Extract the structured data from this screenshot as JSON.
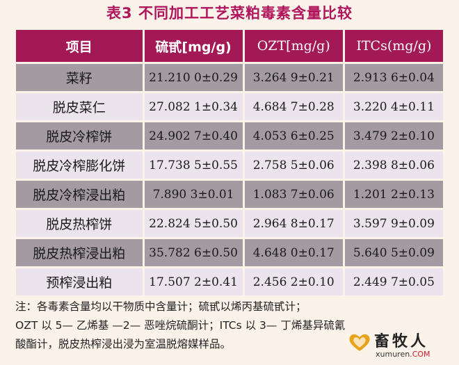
{
  "title": "表3  不同加工工艺菜粕毒素含量比较",
  "table": {
    "headers": [
      "项目",
      "硫甙[mg/g)",
      "OZT[mg/g)",
      "ITCs(mg/g)"
    ],
    "rows": [
      [
        "菜籽",
        "21.210 0±0.29",
        "3.264 9±0.21",
        "2.913 6±0.04"
      ],
      [
        "脱皮菜仁",
        "27.082 1±0.34",
        "4.684 7±0.28",
        "3.220 4±0.11"
      ],
      [
        "脱皮冷榨饼",
        "24.902 7±0.40",
        "4.053 6±0.25",
        "3.479 2±0.10"
      ],
      [
        "脱皮冷榨膨化饼",
        "17.738 5±0.55",
        "2.758 5±0.06",
        "2.398 8±0.06"
      ],
      [
        "脱皮冷榨浸出粕",
        "7.890 3±0.01",
        "1.083 7±0.06",
        "1.201 2±0.13"
      ],
      [
        "脱皮热榨饼",
        "22.824 5±0.50",
        "2.964 8±0.17",
        "3.597 9±0.09"
      ],
      [
        "脱皮热榨浸出粕",
        "35.782 6±0.50",
        "4.648 0±0.17",
        "5.640 5±0.09"
      ],
      [
        "预榨浸出粕",
        "17.507 2±0.41",
        "2.456 2±0.10",
        "2.449 7±0.05"
      ]
    ]
  },
  "note": [
    "注：各毒素含量均以干物质中含量计；硫甙以烯丙基硫甙计；",
    "OZT 以 5— 乙烯基 —2— 恶唑烷硫酮计；ITCs 以 3— 丁烯基异硫氰",
    "酸酯计，脱皮热榨浸出浸为室温脱熔媒样品。"
  ],
  "logo": {
    "name": "畜牧人",
    "site": "xumuren",
    "tld": ".COM"
  }
}
